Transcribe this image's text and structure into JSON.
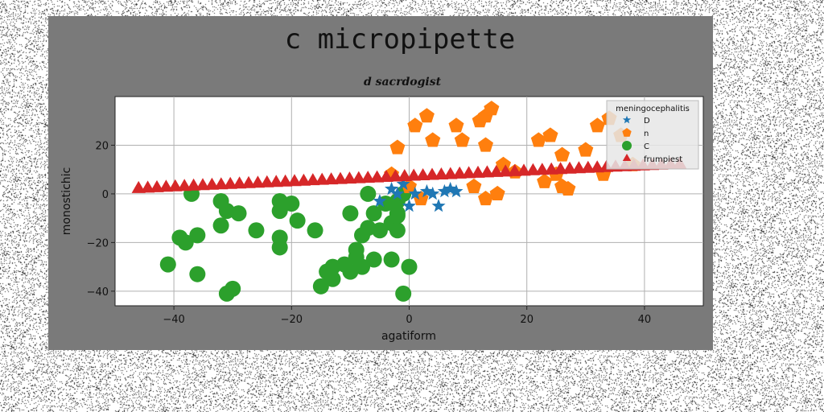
{
  "chart_data": {
    "type": "scatter",
    "title": "c micropipette",
    "subtitle": "d sacrdogist",
    "xlabel": "agatiform",
    "ylabel": "monostichic",
    "xlim": [
      -50,
      50
    ],
    "ylim": [
      -46,
      40
    ],
    "xticks": [
      -40,
      -20,
      0,
      20,
      40
    ],
    "yticks": [
      -40,
      -20,
      0,
      20
    ],
    "grid": true,
    "legend_title": "meningocephalitis",
    "legend_position": "top-right",
    "series": [
      {
        "name": "D",
        "marker": "star",
        "color": "#1f77b4",
        "points": [
          [
            -5,
            -3
          ],
          [
            -3,
            2
          ],
          [
            -1,
            4
          ],
          [
            0,
            -5
          ],
          [
            1,
            0
          ],
          [
            3,
            1
          ],
          [
            4,
            0
          ],
          [
            5,
            -5
          ],
          [
            6,
            1
          ],
          [
            7,
            2
          ],
          [
            8,
            1
          ],
          [
            -2,
            0
          ]
        ]
      },
      {
        "name": "n",
        "marker": "pentagon",
        "color": "#ff7f0e",
        "points": [
          [
            -2,
            19
          ],
          [
            1,
            28
          ],
          [
            3,
            32
          ],
          [
            4,
            22
          ],
          [
            8,
            28
          ],
          [
            9,
            22
          ],
          [
            12,
            30
          ],
          [
            13,
            32
          ],
          [
            14,
            35
          ],
          [
            13,
            20
          ],
          [
            11,
            3
          ],
          [
            13,
            -2
          ],
          [
            15,
            0
          ],
          [
            16,
            12
          ],
          [
            18,
            9
          ],
          [
            22,
            22
          ],
          [
            24,
            24
          ],
          [
            23,
            5
          ],
          [
            25,
            8
          ],
          [
            26,
            3
          ],
          [
            27,
            2
          ],
          [
            26,
            16
          ],
          [
            30,
            18
          ],
          [
            32,
            28
          ],
          [
            33,
            8
          ],
          [
            34,
            31
          ],
          [
            36,
            24
          ],
          [
            38,
            12
          ],
          [
            -3,
            8
          ],
          [
            0,
            3
          ],
          [
            2,
            -2
          ]
        ]
      },
      {
        "name": "C",
        "marker": "circle",
        "color": "#2ca02c",
        "points": [
          [
            -41,
            -29
          ],
          [
            -39,
            -18
          ],
          [
            -38,
            -20
          ],
          [
            -37,
            0
          ],
          [
            -36,
            -17
          ],
          [
            -36,
            -33
          ],
          [
            -32,
            -3
          ],
          [
            -32,
            -13
          ],
          [
            -31,
            -41
          ],
          [
            -31,
            -7
          ],
          [
            -30,
            -39
          ],
          [
            -29,
            -8
          ],
          [
            -26,
            -15
          ],
          [
            -22,
            -3
          ],
          [
            -22,
            -7
          ],
          [
            -22,
            -18
          ],
          [
            -22,
            -22
          ],
          [
            -20,
            -4
          ],
          [
            -19,
            -11
          ],
          [
            -16,
            -15
          ],
          [
            -15,
            -38
          ],
          [
            -14,
            -32
          ],
          [
            -13,
            -30
          ],
          [
            -13,
            -35
          ],
          [
            -11,
            -29
          ],
          [
            -10,
            -8
          ],
          [
            -10,
            -32
          ],
          [
            -9,
            -23
          ],
          [
            -9,
            -26
          ],
          [
            -8,
            -30
          ],
          [
            -8,
            -17
          ],
          [
            -7,
            0
          ],
          [
            -7,
            -14
          ],
          [
            -6,
            -8
          ],
          [
            -6,
            -27
          ],
          [
            -5,
            -15
          ],
          [
            -4,
            -4
          ],
          [
            -3,
            -27
          ],
          [
            -3,
            -12
          ],
          [
            -2,
            -9
          ],
          [
            -2,
            -15
          ],
          [
            -2,
            -3
          ],
          [
            -2,
            -8
          ],
          [
            -1,
            -41
          ],
          [
            -1,
            0
          ],
          [
            0,
            -30
          ]
        ]
      },
      {
        "name": "frumpiest",
        "marker": "triangle",
        "color": "#d62728",
        "line": {
          "x0": -46,
          "x1": 46,
          "y0": 2,
          "y1": 12,
          "count": 60
        }
      }
    ]
  }
}
